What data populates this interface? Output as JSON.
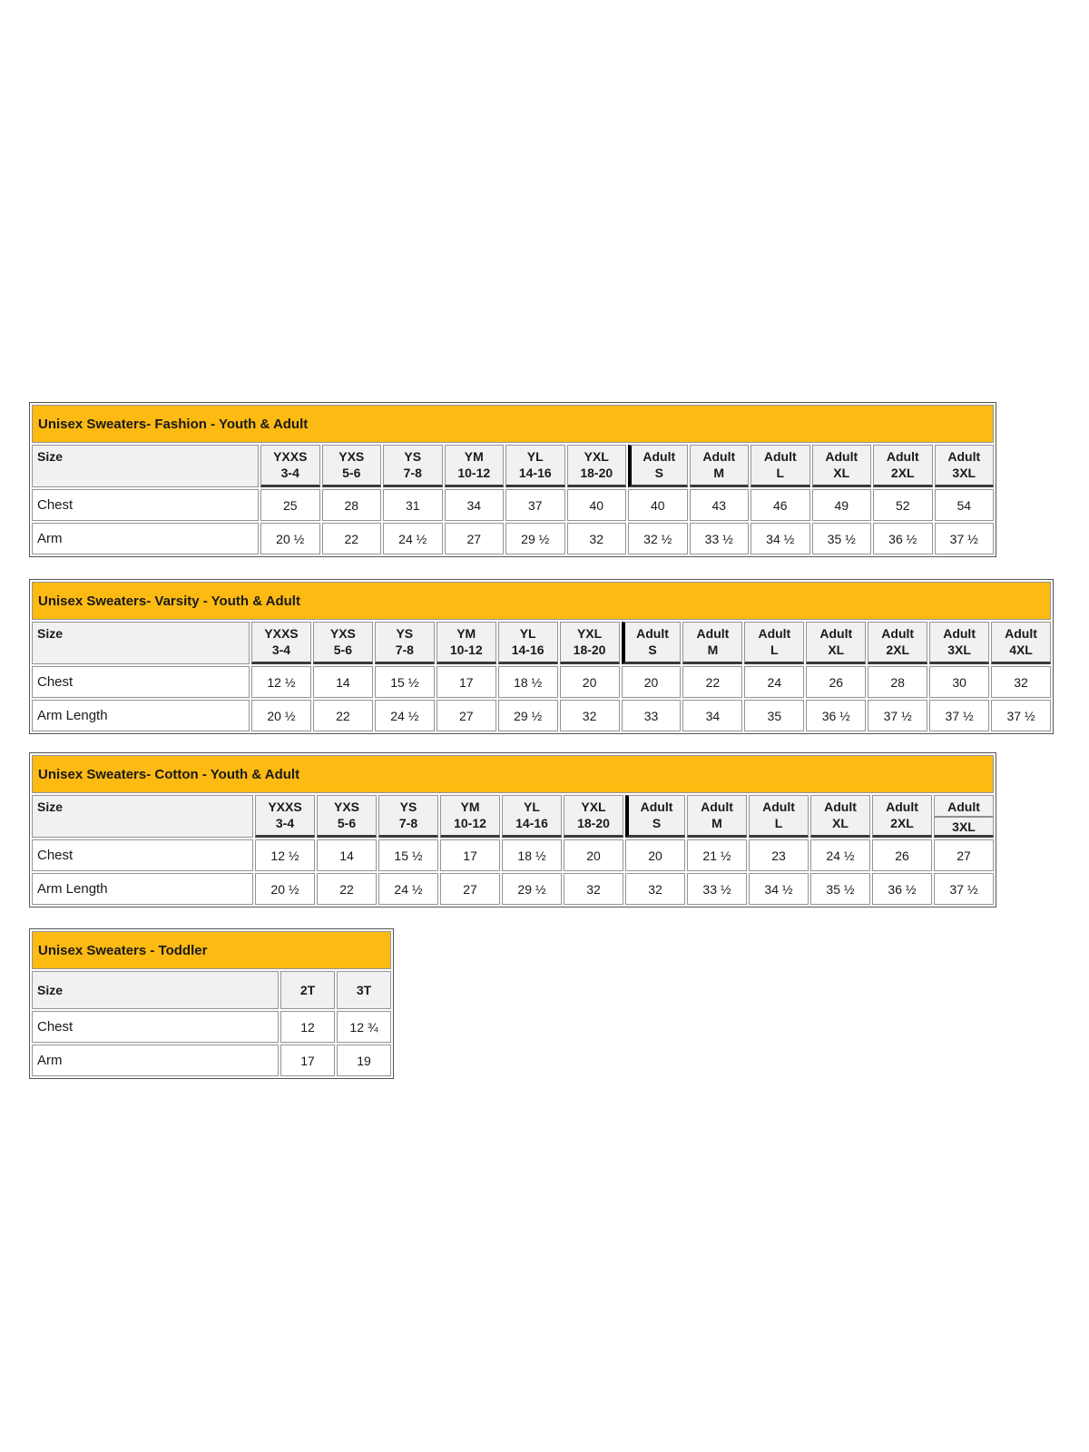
{
  "colors": {
    "title_bg": "#FDBA12",
    "header_bg": "#F1F1F1",
    "grid": "#949494",
    "grid_dark": "#3A3A3A",
    "separator": "#000000",
    "text": "#1A1A1A"
  },
  "tables": [
    {
      "id": "fashion",
      "title": "Unisex Sweaters- Fashion - Youth & Adult",
      "size_label": "Size",
      "heavy_header": true,
      "adult_start_index": 6,
      "columns": [
        {
          "line1": "YXXS",
          "line2": "3-4"
        },
        {
          "line1": "YXS",
          "line2": "5-6"
        },
        {
          "line1": "YS",
          "line2": "7-8"
        },
        {
          "line1": "YM",
          "line2": "10-12"
        },
        {
          "line1": "YL",
          "line2": "14-16"
        },
        {
          "line1": "YXL",
          "line2": "18-20"
        },
        {
          "line1": "Adult",
          "line2": "S"
        },
        {
          "line1": "Adult",
          "line2": "M"
        },
        {
          "line1": "Adult",
          "line2": "L"
        },
        {
          "line1": "Adult",
          "line2": "XL"
        },
        {
          "line1": "Adult",
          "line2": "2XL"
        },
        {
          "line1": "Adult",
          "line2": "3XL"
        }
      ],
      "rows": [
        {
          "label": "Chest",
          "values": [
            "25",
            "28",
            "31",
            "34",
            "37",
            "40",
            "40",
            "43",
            "46",
            "49",
            "52",
            "54"
          ]
        },
        {
          "label": "Arm",
          "values": [
            "20 ½",
            "22",
            "24 ½",
            "27",
            "29 ½",
            "32",
            "32 ½",
            "33 ½",
            "34 ½",
            "35 ½",
            "36 ½",
            "37 ½"
          ]
        }
      ]
    },
    {
      "id": "varsity",
      "title": "Unisex Sweaters- Varsity - Youth & Adult",
      "size_label": "Size",
      "heavy_header": true,
      "adult_start_index": 6,
      "columns": [
        {
          "line1": "YXXS",
          "line2": "3-4"
        },
        {
          "line1": "YXS",
          "line2": "5-6"
        },
        {
          "line1": "YS",
          "line2": "7-8"
        },
        {
          "line1": "YM",
          "line2": "10-12"
        },
        {
          "line1": "YL",
          "line2": "14-16"
        },
        {
          "line1": "YXL",
          "line2": "18-20"
        },
        {
          "line1": "Adult",
          "line2": "S"
        },
        {
          "line1": "Adult",
          "line2": "M"
        },
        {
          "line1": "Adult",
          "line2": "L"
        },
        {
          "line1": "Adult",
          "line2": "XL"
        },
        {
          "line1": "Adult",
          "line2": "2XL"
        },
        {
          "line1": "Adult",
          "line2": "3XL"
        },
        {
          "line1": "Adult",
          "line2": "4XL"
        }
      ],
      "rows": [
        {
          "label": "Chest",
          "values": [
            "12 ½",
            "14",
            "15 ½",
            "17",
            "18 ½",
            "20",
            "20",
            "22",
            "24",
            "26",
            "28",
            "30",
            "32"
          ]
        },
        {
          "label": "Arm Length",
          "values": [
            "20 ½",
            "22",
            "24 ½",
            "27",
            "29 ½",
            "32",
            "33",
            "34",
            "35",
            "36 ½",
            "37 ½",
            "37 ½",
            "37 ½"
          ]
        }
      ]
    },
    {
      "id": "cotton",
      "title": "Unisex Sweaters- Cotton - Youth & Adult",
      "size_label": "Size",
      "heavy_header": true,
      "adult_start_index": 6,
      "columns": [
        {
          "line1": "YXXS",
          "line2": "3-4"
        },
        {
          "line1": "YXS",
          "line2": "5-6"
        },
        {
          "line1": "YS",
          "line2": "7-8"
        },
        {
          "line1": "YM",
          "line2": "10-12"
        },
        {
          "line1": "YL",
          "line2": "14-16"
        },
        {
          "line1": "YXL",
          "line2": "18-20"
        },
        {
          "line1": "Adult",
          "line2": "S"
        },
        {
          "line1": "Adult",
          "line2": "M"
        },
        {
          "line1": "Adult",
          "line2": "L"
        },
        {
          "line1": "Adult",
          "line2": "XL"
        },
        {
          "line1": "Adult",
          "line2": "2XL"
        },
        {
          "line1": "Adult",
          "line2": "3XL",
          "split": true
        }
      ],
      "rows": [
        {
          "label": "Chest",
          "values": [
            "12 ½",
            "14",
            "15 ½",
            "17",
            "18 ½",
            "20",
            "20",
            "21 ½",
            "23",
            "24 ½",
            "26",
            "27"
          ]
        },
        {
          "label": "Arm Length",
          "values": [
            "20 ½",
            "22",
            "24 ½",
            "27",
            "29 ½",
            "32",
            "32",
            "33 ½",
            "34 ½",
            "35 ½",
            "36 ½",
            "37 ½"
          ]
        }
      ]
    },
    {
      "id": "toddler",
      "title": "Unisex Sweaters - Toddler",
      "size_label": "Size",
      "heavy_header": false,
      "adult_start_index": null,
      "columns": [
        {
          "line1": "2T"
        },
        {
          "line1": "3T"
        }
      ],
      "rows": [
        {
          "label": "Chest",
          "values": [
            "12",
            "12 ¾"
          ]
        },
        {
          "label": "Arm",
          "values": [
            "17",
            "19"
          ]
        }
      ]
    }
  ]
}
